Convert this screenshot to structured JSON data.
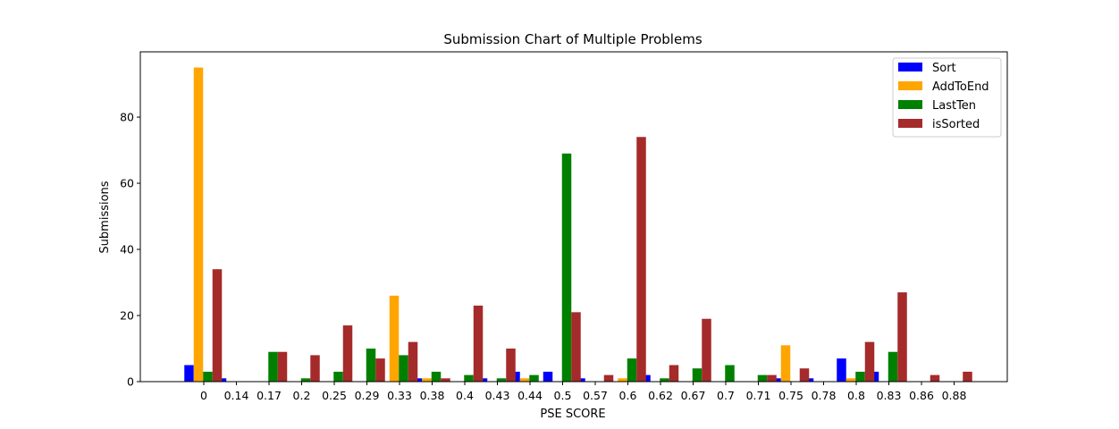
{
  "chart_data": {
    "type": "bar",
    "title": "Submission Chart of Multiple Problems",
    "xlabel": "PSE SCORE",
    "ylabel": "Submissions",
    "categories": [
      "0",
      "0.14",
      "0.17",
      "0.2",
      "0.25",
      "0.29",
      "0.33",
      "0.38",
      "0.4",
      "0.43",
      "0.44",
      "0.5",
      "0.57",
      "0.6",
      "0.62",
      "0.67",
      "0.7",
      "0.71",
      "0.75",
      "0.78",
      "0.8",
      "0.83",
      "0.86",
      "0.88"
    ],
    "yticks": [
      0,
      20,
      40,
      60,
      80
    ],
    "ylim": [
      0,
      99.75
    ],
    "grid": false,
    "legend_position": "top-right",
    "series": [
      {
        "name": "Sort",
        "color": "#0000ff",
        "values": [
          5,
          1,
          0,
          0,
          0,
          0,
          0,
          1,
          0,
          1,
          3,
          3,
          1,
          0,
          2,
          0,
          0,
          0,
          1,
          1,
          7,
          3,
          0,
          0
        ]
      },
      {
        "name": "AddToEnd",
        "color": "#ffa500",
        "values": [
          95,
          0,
          0,
          0,
          0,
          0,
          26,
          1,
          0,
          0,
          1,
          0,
          0,
          1,
          0,
          0,
          0,
          0,
          11,
          0,
          1,
          0,
          0,
          0
        ]
      },
      {
        "name": "LastTen",
        "color": "#008000",
        "values": [
          3,
          0,
          9,
          1,
          3,
          10,
          8,
          3,
          2,
          1,
          2,
          69,
          0,
          7,
          1,
          4,
          5,
          2,
          0,
          0,
          3,
          9,
          0,
          0
        ]
      },
      {
        "name": "isSorted",
        "color": "#a52a2a",
        "values": [
          34,
          0,
          9,
          8,
          17,
          7,
          12,
          1,
          23,
          10,
          0,
          21,
          2,
          74,
          5,
          19,
          0,
          2,
          4,
          0,
          12,
          27,
          2,
          3
        ]
      }
    ]
  }
}
